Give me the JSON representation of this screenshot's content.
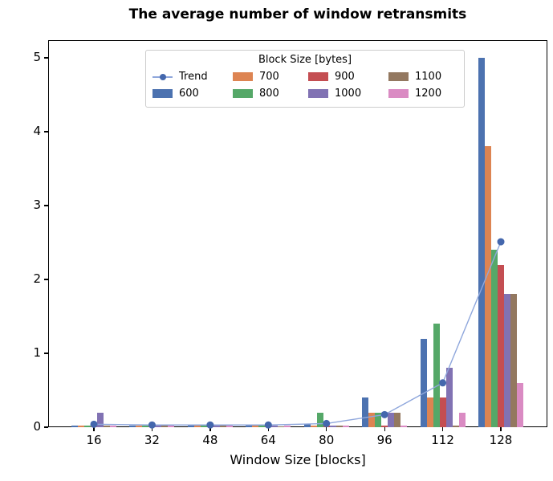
{
  "title": "The average number of window retransmits",
  "chart_data": {
    "type": "bar",
    "title": "The average number of window retransmits",
    "xlabel": "Window Size [blocks]",
    "ylabel": "",
    "categories": [
      16,
      32,
      48,
      64,
      80,
      96,
      112,
      128
    ],
    "yticks": [
      0,
      1,
      2,
      3,
      4,
      5
    ],
    "ylim": [
      0,
      5.24
    ],
    "grid": false,
    "legend_title": "Block Size [bytes]",
    "legend_position": "upper center inside plot",
    "series": [
      {
        "name": "600",
        "color": "#4C72B0",
        "values": [
          0.02,
          0.02,
          0.02,
          0.02,
          0.04,
          0.4,
          1.2,
          5.0
        ]
      },
      {
        "name": "700",
        "color": "#DD8452",
        "values": [
          0.02,
          0.02,
          0.02,
          0.02,
          0.02,
          0.2,
          0.4,
          3.8
        ]
      },
      {
        "name": "800",
        "color": "#55A868",
        "values": [
          0.02,
          0.02,
          0.02,
          0.02,
          0.2,
          0.2,
          1.4,
          2.4
        ]
      },
      {
        "name": "900",
        "color": "#C44E52",
        "values": [
          0.01,
          0.01,
          0.01,
          0.01,
          0.02,
          0.02,
          0.4,
          2.2
        ]
      },
      {
        "name": "1000",
        "color": "#8172B3",
        "values": [
          0.2,
          0.02,
          0.02,
          0.02,
          0.02,
          0.2,
          0.8,
          1.8
        ]
      },
      {
        "name": "1100",
        "color": "#937860",
        "values": [
          0.02,
          0.02,
          0.02,
          0.01,
          0.02,
          0.2,
          0.02,
          1.8
        ]
      },
      {
        "name": "1200",
        "color": "#DA8BC3",
        "values": [
          0.02,
          0.02,
          0.02,
          0.02,
          0.02,
          0.02,
          0.2,
          0.6
        ]
      }
    ],
    "trend": {
      "name": "Trend",
      "line_color": "#8FA7DC",
      "marker_color": "#4467AD",
      "values": [
        0.04,
        0.03,
        0.03,
        0.03,
        0.05,
        0.17,
        0.6,
        2.51
      ]
    }
  }
}
